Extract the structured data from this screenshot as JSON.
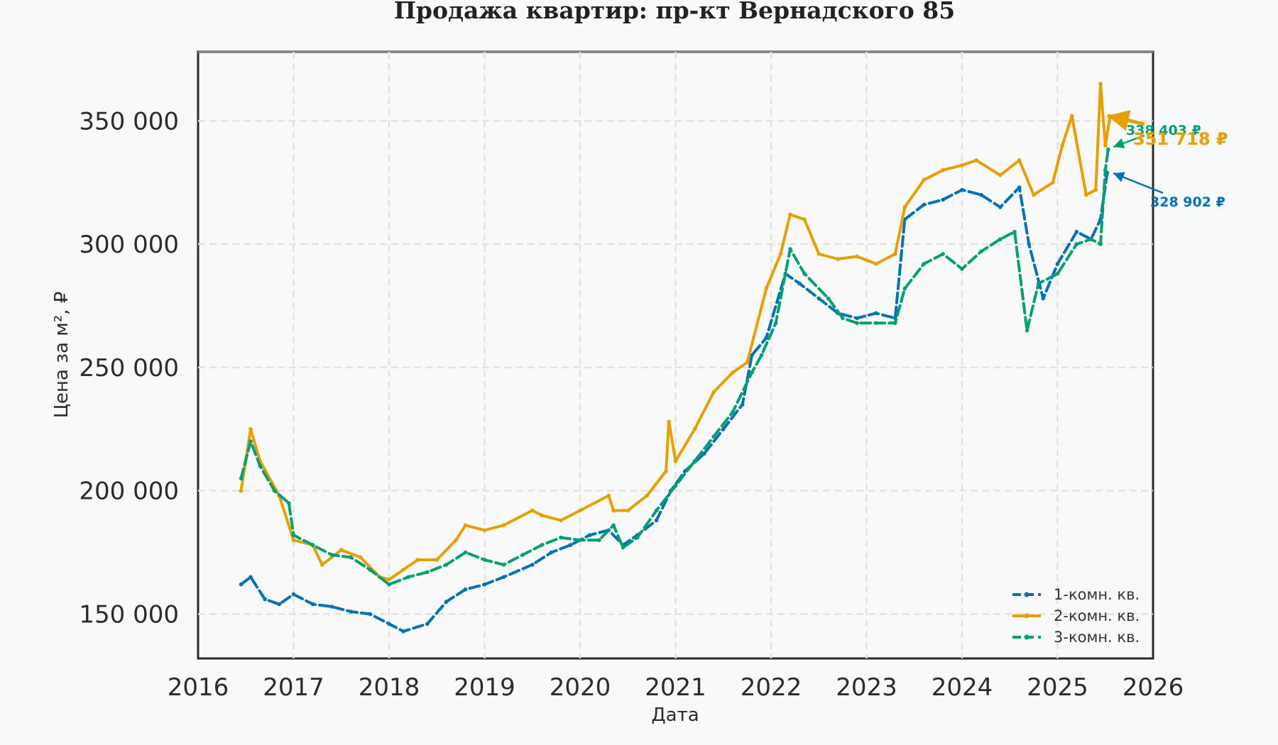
{
  "chart_data": {
    "type": "line",
    "title": "Продажа квартир: пр-кт Вернадского 85",
    "xlabel": "Дата",
    "ylabel": "Цена за м², ₽",
    "xlim": [
      2016.0,
      2026.0
    ],
    "ylim": [
      132000,
      378000
    ],
    "x_ticks": [
      {
        "value": 2016,
        "label": "2016"
      },
      {
        "value": 2017,
        "label": "2017"
      },
      {
        "value": 2018,
        "label": "2018"
      },
      {
        "value": 2019,
        "label": "2019"
      },
      {
        "value": 2020,
        "label": "2020"
      },
      {
        "value": 2021,
        "label": "2021"
      },
      {
        "value": 2022,
        "label": "2022"
      },
      {
        "value": 2023,
        "label": "2023"
      },
      {
        "value": 2024,
        "label": "2024"
      },
      {
        "value": 2025,
        "label": "2025"
      },
      {
        "value": 2026,
        "label": "2026"
      }
    ],
    "y_ticks": [
      {
        "value": 150000,
        "label": "150 000"
      },
      {
        "value": 200000,
        "label": "200 000"
      },
      {
        "value": 250000,
        "label": "250 000"
      },
      {
        "value": 300000,
        "label": "300 000"
      },
      {
        "value": 350000,
        "label": "350 000"
      }
    ],
    "grid": true,
    "legend_position": "bottom-right",
    "series": [
      {
        "name": "1-комн. кв.",
        "color": "#0072b2",
        "dash": "dashed",
        "x": [
          2016.45,
          2016.55,
          2016.7,
          2016.85,
          2017.0,
          2017.2,
          2017.4,
          2017.6,
          2017.8,
          2018.0,
          2018.15,
          2018.4,
          2018.6,
          2018.8,
          2019.0,
          2019.2,
          2019.5,
          2019.7,
          2019.9,
          2020.1,
          2020.3,
          2020.45,
          2020.6,
          2020.8,
          2020.95,
          2021.1,
          2021.3,
          2021.5,
          2021.7,
          2021.8,
          2021.95,
          2022.15,
          2022.3,
          2022.5,
          2022.7,
          2022.9,
          2023.1,
          2023.3,
          2023.4,
          2023.6,
          2023.8,
          2024.0,
          2024.2,
          2024.4,
          2024.6,
          2024.7,
          2024.85,
          2025.0,
          2025.2,
          2025.35,
          2025.45,
          2025.52
        ],
        "values": [
          162000,
          165000,
          156000,
          154000,
          158000,
          154000,
          153000,
          151000,
          150000,
          146000,
          143000,
          146000,
          155000,
          160000,
          162000,
          165000,
          170000,
          175000,
          178000,
          182000,
          184000,
          178000,
          182000,
          188000,
          200000,
          208000,
          215000,
          225000,
          235000,
          255000,
          262000,
          288000,
          284000,
          278000,
          272000,
          270000,
          272000,
          270000,
          310000,
          316000,
          318000,
          322000,
          320000,
          315000,
          323000,
          300000,
          278000,
          292000,
          305000,
          302000,
          310000,
          328902
        ]
      },
      {
        "name": "2-комн. кв.",
        "color": "#e69f00",
        "dash": "solid",
        "x": [
          2016.45,
          2016.55,
          2016.65,
          2016.85,
          2017.0,
          2017.2,
          2017.3,
          2017.5,
          2017.7,
          2017.9,
          2018.0,
          2018.15,
          2018.3,
          2018.5,
          2018.7,
          2018.8,
          2019.0,
          2019.2,
          2019.5,
          2019.6,
          2019.8,
          2020.0,
          2020.3,
          2020.35,
          2020.5,
          2020.7,
          2020.9,
          2020.93,
          2021.0,
          2021.2,
          2021.4,
          2021.6,
          2021.75,
          2021.95,
          2022.1,
          2022.2,
          2022.35,
          2022.5,
          2022.7,
          2022.9,
          2023.1,
          2023.3,
          2023.4,
          2023.6,
          2023.8,
          2024.0,
          2024.15,
          2024.4,
          2024.6,
          2024.75,
          2024.95,
          2025.05,
          2025.15,
          2025.3,
          2025.4,
          2025.45,
          2025.5,
          2025.55
        ],
        "values": [
          200000,
          225000,
          212000,
          198000,
          180000,
          178000,
          170000,
          176000,
          173000,
          165000,
          164000,
          168000,
          172000,
          172000,
          180000,
          186000,
          184000,
          186000,
          192000,
          190000,
          188000,
          192000,
          198000,
          192000,
          192000,
          198000,
          208000,
          228000,
          212000,
          225000,
          240000,
          248000,
          252000,
          282000,
          296000,
          312000,
          310000,
          296000,
          294000,
          295000,
          292000,
          296000,
          315000,
          326000,
          330000,
          332000,
          334000,
          328000,
          334000,
          320000,
          325000,
          340000,
          352000,
          320000,
          322000,
          365000,
          340000,
          351718
        ]
      },
      {
        "name": "3-комн. кв.",
        "color": "#009e73",
        "dash": "dashed",
        "x": [
          2016.45,
          2016.55,
          2016.65,
          2016.8,
          2016.95,
          2017.0,
          2017.2,
          2017.4,
          2017.6,
          2017.8,
          2018.0,
          2018.2,
          2018.4,
          2018.6,
          2018.8,
          2019.0,
          2019.2,
          2019.4,
          2019.6,
          2019.8,
          2020.0,
          2020.2,
          2020.35,
          2020.45,
          2020.6,
          2020.8,
          2021.0,
          2021.2,
          2021.4,
          2021.6,
          2021.8,
          2021.9,
          2022.05,
          2022.2,
          2022.35,
          2022.6,
          2022.75,
          2022.9,
          2023.1,
          2023.3,
          2023.4,
          2023.6,
          2023.8,
          2024.0,
          2024.2,
          2024.4,
          2024.55,
          2024.68,
          2024.8,
          2025.0,
          2025.2,
          2025.35,
          2025.45,
          2025.5,
          2025.53
        ],
        "values": [
          205000,
          220000,
          210000,
          200000,
          195000,
          182000,
          178000,
          174000,
          173000,
          168000,
          162000,
          165000,
          167000,
          170000,
          175000,
          172000,
          170000,
          174000,
          178000,
          181000,
          180000,
          180000,
          186000,
          177000,
          181000,
          192000,
          202000,
          212000,
          222000,
          232000,
          248000,
          255000,
          268000,
          298000,
          288000,
          278000,
          270000,
          268000,
          268000,
          268000,
          282000,
          292000,
          296000,
          290000,
          297000,
          302000,
          305000,
          265000,
          284000,
          288000,
          300000,
          302000,
          300000,
          330000,
          338403
        ]
      }
    ],
    "annotations": [
      {
        "series": "3-комн. кв.",
        "text": "338 403 ₽",
        "color": "#009e73"
      },
      {
        "series": "2-комн. кв.",
        "text": "351 718 ₽",
        "color": "#e69f00"
      },
      {
        "series": "1-комн. кв.",
        "text": "328 902 ₽",
        "color": "#0072b2"
      }
    ]
  }
}
